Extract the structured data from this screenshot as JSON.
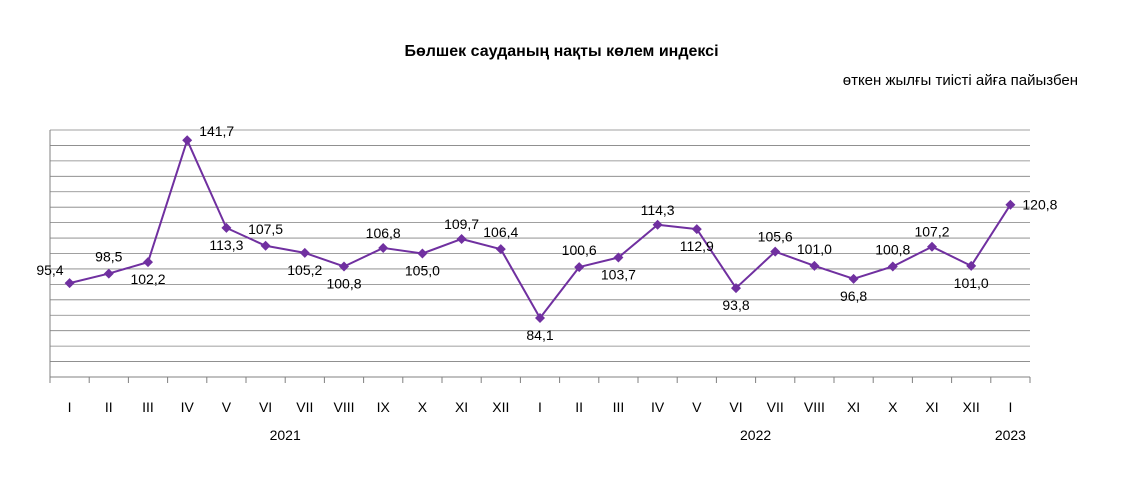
{
  "chart_data": {
    "type": "line",
    "title": "Бөлшек сауданың  нақты көлем индексі",
    "subtitle": "өткен жылғы тиісті айға пайызбен",
    "x": [
      "I",
      "II",
      "III",
      "IV",
      "V",
      "VI",
      "VII",
      "VIII",
      "IX",
      "X",
      "XI",
      "XII",
      "I",
      "II",
      "III",
      "IV",
      "V",
      "VI",
      "VII",
      "VIII",
      "XI",
      "X",
      "XI",
      "XII",
      "I"
    ],
    "years": [
      {
        "label": "2021",
        "from": 0,
        "to": 11
      },
      {
        "label": "2022",
        "from": 12,
        "to": 23
      },
      {
        "label": "2023",
        "from": 24,
        "to": 24
      }
    ],
    "series": [
      {
        "values": [
          95.4,
          98.5,
          102.2,
          141.7,
          113.3,
          107.5,
          105.2,
          100.8,
          106.8,
          105.0,
          109.7,
          106.4,
          84.1,
          100.6,
          103.7,
          114.3,
          112.9,
          93.8,
          105.6,
          101.0,
          96.8,
          100.8,
          107.2,
          101.0,
          120.8
        ],
        "labels": [
          "95,4",
          "98,5",
          "102,2",
          "141,7",
          "113,3",
          "107,5",
          "105,2",
          "100,8",
          "106,8",
          "105,0",
          "109,7",
          "106,4",
          "84,1",
          "100,6",
          "103,7",
          "114,3",
          "112,9",
          "93,8",
          "105,6",
          "101,0",
          "96,8",
          "100,8",
          "107,2",
          "101,0",
          "120,8"
        ]
      }
    ],
    "ylim": [
      65,
      145
    ],
    "grid": true,
    "legend": "none",
    "colors": {
      "line": "#7030A0",
      "grid": "#808080",
      "axis": "#808080"
    }
  }
}
